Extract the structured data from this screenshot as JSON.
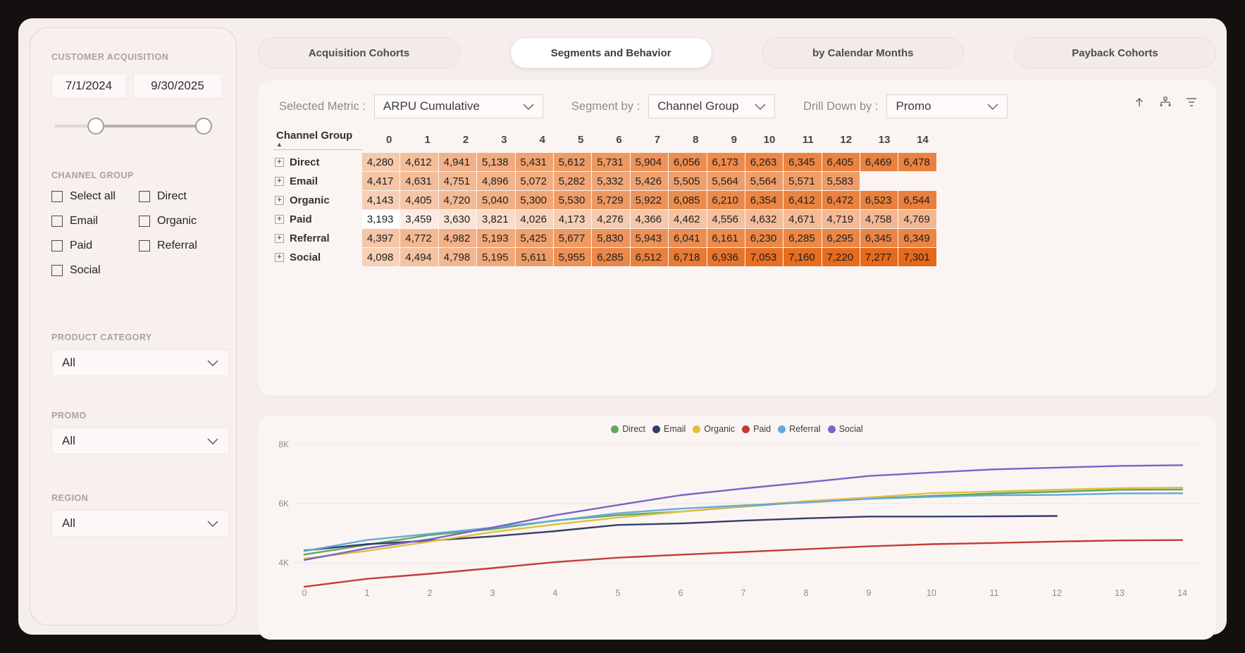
{
  "colors": {
    "frame": "#141010",
    "canvas": "#f5eeec",
    "card": "#faf5f3",
    "heat_high": "#e66919"
  },
  "sidebar": {
    "title": "CUSTOMER ACQUISITION",
    "date_from": "7/1/2024",
    "date_to": "9/30/2025",
    "channel_group_label": "CHANNEL GROUP",
    "channel_options": [
      {
        "label": "Select all",
        "checked": false
      },
      {
        "label": "Direct",
        "checked": false
      },
      {
        "label": "Email",
        "checked": false
      },
      {
        "label": "Organic",
        "checked": false
      },
      {
        "label": "Paid",
        "checked": false
      },
      {
        "label": "Referral",
        "checked": false
      },
      {
        "label": "Social",
        "checked": false
      }
    ],
    "product_category_label": "PRODUCT CATEGORY",
    "product_category_value": "All",
    "promo_label": "PROMO",
    "promo_value": "All",
    "region_label": "REGION",
    "region_value": "All"
  },
  "tabs": [
    {
      "label": "Acquisition Cohorts",
      "active": false
    },
    {
      "label": "Segments and Behavior",
      "active": true
    },
    {
      "label": "by Calendar Months",
      "active": false
    },
    {
      "label": "Payback Cohorts",
      "active": false
    }
  ],
  "toolbar": {
    "metric_label": "Selected Metric :",
    "metric_value": "ARPU Cumulative",
    "segment_label": "Segment by :",
    "segment_value": "Channel Group",
    "drill_label": "Drill Down by :",
    "drill_value": "Promo",
    "icons": [
      "drill-up",
      "expand-all-down",
      "filter"
    ]
  },
  "matrix": {
    "row_header": "Channel Group",
    "sort": "ascending",
    "columns": [
      "0",
      "1",
      "2",
      "3",
      "4",
      "5",
      "6",
      "7",
      "8",
      "9",
      "10",
      "11",
      "12",
      "13",
      "14"
    ],
    "rows": [
      {
        "label": "Direct",
        "values": [
          4280,
          4612,
          4941,
          5138,
          5431,
          5612,
          5731,
          5904,
          6056,
          6173,
          6263,
          6345,
          6405,
          6469,
          6478
        ]
      },
      {
        "label": "Email",
        "values": [
          4417,
          4631,
          4751,
          4896,
          5072,
          5282,
          5332,
          5426,
          5505,
          5564,
          5564,
          5571,
          5583,
          null,
          null
        ]
      },
      {
        "label": "Organic",
        "values": [
          4143,
          4405,
          4720,
          5040,
          5300,
          5530,
          5729,
          5922,
          6085,
          6210,
          6354,
          6412,
          6472,
          6523,
          6544
        ]
      },
      {
        "label": "Paid",
        "values": [
          3193,
          3459,
          3630,
          3821,
          4026,
          4173,
          4276,
          4366,
          4462,
          4556,
          4632,
          4671,
          4719,
          4758,
          4769
        ]
      },
      {
        "label": "Referral",
        "values": [
          4397,
          4772,
          4982,
          5193,
          5425,
          5677,
          5830,
          5943,
          6041,
          6161,
          6230,
          6285,
          6295,
          6345,
          6349
        ]
      },
      {
        "label": "Social",
        "values": [
          4098,
          4494,
          4798,
          5195,
          5611,
          5955,
          6285,
          6512,
          6718,
          6936,
          7053,
          7160,
          7220,
          7277,
          7301
        ]
      }
    ],
    "heatmap": {
      "min": 3193,
      "max": 7301,
      "low_color": "#ffffff",
      "high_color": "#e66919"
    }
  },
  "chart_data": {
    "type": "line",
    "x": [
      0,
      1,
      2,
      3,
      4,
      5,
      6,
      7,
      8,
      9,
      10,
      11,
      12,
      13,
      14
    ],
    "series": [
      {
        "name": "Direct",
        "color": "#5fa85c",
        "values": [
          4280,
          4612,
          4941,
          5138,
          5431,
          5612,
          5731,
          5904,
          6056,
          6173,
          6263,
          6345,
          6405,
          6469,
          6478
        ]
      },
      {
        "name": "Email",
        "color": "#333f6b",
        "values": [
          4417,
          4631,
          4751,
          4896,
          5072,
          5282,
          5332,
          5426,
          5505,
          5564,
          5564,
          5571,
          5583,
          null,
          null
        ]
      },
      {
        "name": "Organic",
        "color": "#e2be3f",
        "values": [
          4143,
          4405,
          4720,
          5040,
          5300,
          5530,
          5729,
          5922,
          6085,
          6210,
          6354,
          6412,
          6472,
          6523,
          6544
        ]
      },
      {
        "name": "Paid",
        "color": "#c43b38",
        "values": [
          3193,
          3459,
          3630,
          3821,
          4026,
          4173,
          4276,
          4366,
          4462,
          4556,
          4632,
          4671,
          4719,
          4758,
          4769
        ]
      },
      {
        "name": "Referral",
        "color": "#66a9dc",
        "values": [
          4397,
          4772,
          4982,
          5193,
          5425,
          5677,
          5830,
          5943,
          6041,
          6161,
          6230,
          6285,
          6295,
          6345,
          6349
        ]
      },
      {
        "name": "Social",
        "color": "#7a63c8",
        "values": [
          4098,
          4494,
          4798,
          5195,
          5611,
          5955,
          6285,
          6512,
          6718,
          6936,
          7053,
          7160,
          7220,
          7277,
          7301
        ]
      }
    ],
    "title": "",
    "xlabel": "",
    "ylabel": "",
    "ylim": [
      2000,
      8000
    ],
    "y_ticks": [
      {
        "label": "8K",
        "value": 8000
      },
      {
        "label": "6K",
        "value": 6000
      },
      {
        "label": "4K",
        "value": 4000
      }
    ],
    "x_tick_labels": [
      "0",
      "1",
      "2",
      "3",
      "4",
      "5",
      "6",
      "7",
      "8",
      "9",
      "10",
      "11",
      "12",
      "13",
      "14"
    ],
    "grid": true,
    "legend_position": "top-center"
  }
}
